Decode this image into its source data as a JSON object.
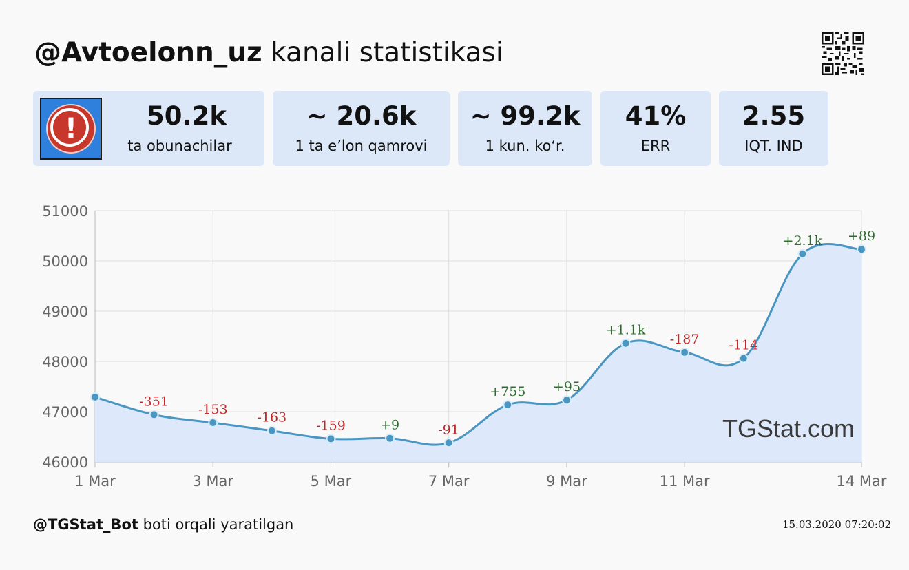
{
  "header": {
    "channel": "@Avtoelonn_uz",
    "title_suffix": " kanali statistikasi"
  },
  "stats": [
    {
      "value": "50.2k",
      "label": "ta obunachilar"
    },
    {
      "value": "~ 20.6k",
      "label": "1 ta e’lon qamrovi"
    },
    {
      "value": "~ 99.2k",
      "label": "1 kun. ko‘r."
    },
    {
      "value": "41%",
      "label": "ERR"
    },
    {
      "value": "2.55",
      "label": "IQT. IND"
    }
  ],
  "watermark": "TGStat.com",
  "footer": {
    "bot": "@TGStat_Bot",
    "suffix": " boti orqali yaratilgan",
    "timestamp": "15.03.2020 07:20:02"
  },
  "colors": {
    "line": "#4a96c2",
    "area": "#dde9fa",
    "positive": "#2e6b2e",
    "negative": "#c62828",
    "card": "#dce8f8",
    "avatar_bg": "#2f7fdc",
    "avatar_icon": "#c8372b"
  },
  "chart_data": {
    "type": "line",
    "x": [
      "1 Mar",
      "2 Mar",
      "3 Mar",
      "4 Mar",
      "5 Mar",
      "6 Mar",
      "7 Mar",
      "8 Mar",
      "9 Mar",
      "10 Mar",
      "11 Mar",
      "12 Mar",
      "13 Mar",
      "14 Mar"
    ],
    "values": [
      47290,
      46940,
      46780,
      46620,
      46460,
      46470,
      46380,
      47135,
      47230,
      48360,
      48180,
      48060,
      50140,
      50230
    ],
    "annotations": [
      null,
      "-351",
      "-153",
      "-163",
      "-159",
      "+9",
      "-91",
      "+755",
      "+95",
      "+1.1k",
      "-187",
      "-114",
      "+2.1k",
      "+89"
    ],
    "x_tick_labels": [
      "1 Mar",
      "3 Mar",
      "5 Mar",
      "7 Mar",
      "9 Mar",
      "11 Mar",
      "14 Mar"
    ],
    "x_tick_index": [
      0,
      2,
      4,
      6,
      8,
      10,
      13
    ],
    "y_ticks": [
      46000,
      47000,
      48000,
      49000,
      50000,
      51000
    ],
    "ylim": [
      46000,
      51000
    ],
    "grid": true
  }
}
